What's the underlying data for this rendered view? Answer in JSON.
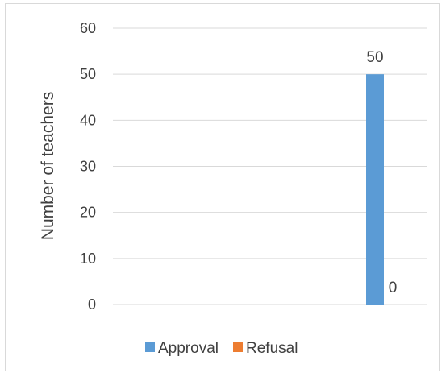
{
  "chart_data": {
    "type": "bar",
    "categories": [
      ""
    ],
    "series": [
      {
        "name": "Approval",
        "values": [
          50
        ],
        "color": "#5b9bd5"
      },
      {
        "name": "Refusal",
        "values": [
          0
        ],
        "color": "#ed7d31"
      }
    ],
    "ylabel": "Number of teachers",
    "ylim": [
      0,
      60
    ],
    "yticks": [
      0,
      10,
      20,
      30,
      40,
      50,
      60
    ],
    "grid": true,
    "legend": "bottom"
  }
}
